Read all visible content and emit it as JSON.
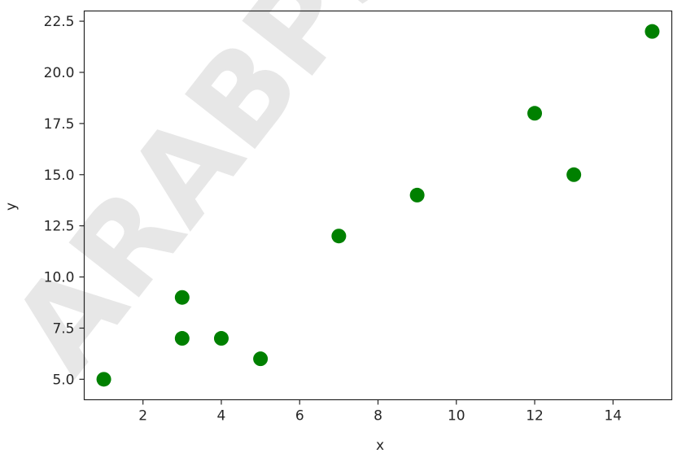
{
  "watermark": "ARABPS",
  "chart_data": {
    "type": "scatter",
    "title": "",
    "xlabel": "x",
    "ylabel": "y",
    "xlim": [
      0.5,
      15.5
    ],
    "ylim": [
      4.0,
      23.0
    ],
    "xticks": [
      2,
      4,
      6,
      8,
      10,
      12,
      14
    ],
    "yticks": [
      5.0,
      7.5,
      10.0,
      12.5,
      15.0,
      17.5,
      20.0,
      22.5
    ],
    "ytick_labels": [
      "5.0",
      "7.5",
      "10.0",
      "12.5",
      "15.0",
      "17.5",
      "20.0",
      "22.5"
    ],
    "grid": false,
    "marker_color": "#008000",
    "points": [
      {
        "x": 1,
        "y": 5
      },
      {
        "x": 3,
        "y": 7
      },
      {
        "x": 3,
        "y": 9
      },
      {
        "x": 4,
        "y": 7
      },
      {
        "x": 5,
        "y": 6
      },
      {
        "x": 7,
        "y": 12
      },
      {
        "x": 9,
        "y": 14
      },
      {
        "x": 12,
        "y": 18
      },
      {
        "x": 13,
        "y": 15
      },
      {
        "x": 15,
        "y": 22
      }
    ]
  }
}
